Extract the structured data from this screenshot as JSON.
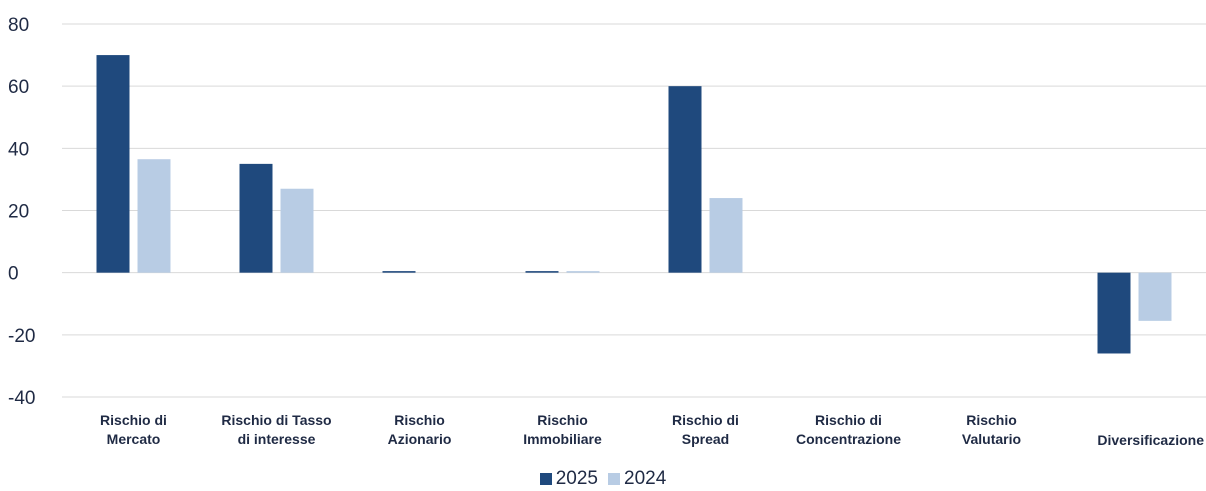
{
  "chart_data": {
    "type": "bar",
    "categories": [
      [
        "Rischio di",
        "Mercato"
      ],
      [
        "Rischio di Tasso",
        "di interesse"
      ],
      [
        "Rischio",
        "Azionario"
      ],
      [
        "Rischio",
        "Immobiliare"
      ],
      [
        "Rischio di",
        "Spread"
      ],
      [
        "Rischio di",
        "Concentrazione"
      ],
      [
        "Rischio",
        "Valutario"
      ],
      [
        "Diversificazione"
      ]
    ],
    "series": [
      {
        "name": "2025",
        "color": "#1f497d",
        "values": [
          70,
          35,
          0.5,
          0.5,
          60,
          0,
          0,
          -26
        ]
      },
      {
        "name": "2024",
        "color": "#b8cce4",
        "values": [
          36.5,
          27,
          0,
          0.5,
          24,
          0,
          0,
          -15.5
        ]
      }
    ],
    "ylim": [
      -40,
      80
    ],
    "yticks": [
      80,
      60,
      40,
      20,
      0,
      -20,
      -40
    ],
    "grid": true,
    "legend_position": "bottom-center"
  }
}
